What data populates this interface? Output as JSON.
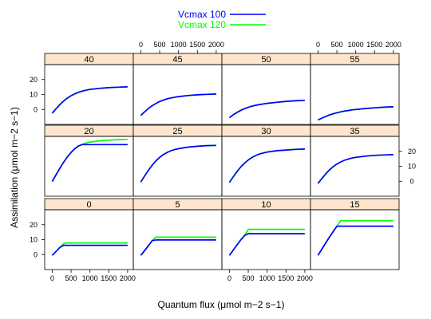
{
  "chart_data": {
    "type": "line",
    "xlabel": "Quantum flux (μmol m−2 s−1)",
    "ylabel": "Assimilation (μmol m−2 s−1)",
    "xlim": [
      -200,
      2150
    ],
    "ylim": [
      -10,
      30
    ],
    "x_ticks": [
      "0",
      "500",
      "1000",
      "1500",
      "2000"
    ],
    "y_ticks": [
      "0",
      "10",
      "20"
    ],
    "legend": {
      "placement": "top",
      "entries": [
        {
          "name": "Vcmax 100",
          "color": "#0000ff"
        },
        {
          "name": "Vcmax 120",
          "color": "#00ff00"
        }
      ]
    },
    "x": [
      0,
      100,
      200,
      300,
      400,
      500,
      600,
      700,
      800,
      900,
      1000,
      1250,
      1500,
      1750,
      2000
    ],
    "panels": [
      {
        "label": "0",
        "series": [
          {
            "name": "Vcmax 100",
            "values": [
              -0.5,
              2.1,
              4.7,
              6.2,
              6.2,
              6.2,
              6.2,
              6.2,
              6.2,
              6.2,
              6.2,
              6.2,
              6.2,
              6.2,
              6.2
            ]
          },
          {
            "name": "Vcmax 120",
            "values": [
              -0.5,
              2.1,
              4.7,
              7.3,
              7.8,
              7.8,
              7.8,
              7.8,
              7.8,
              7.8,
              7.8,
              7.8,
              7.8,
              7.8,
              7.8
            ]
          }
        ]
      },
      {
        "label": "5",
        "series": [
          {
            "name": "Vcmax 100",
            "values": [
              -0.5,
              2.7,
              5.9,
              9.3,
              9.8,
              9.8,
              9.8,
              9.8,
              9.8,
              9.8,
              9.8,
              9.8,
              9.8,
              9.8,
              9.8
            ]
          },
          {
            "name": "Vcmax 120",
            "values": [
              -0.5,
              2.7,
              5.9,
              9.3,
              11.7,
              11.7,
              11.7,
              11.7,
              11.7,
              11.7,
              11.7,
              11.7,
              11.7,
              11.7,
              11.7
            ]
          }
        ]
      },
      {
        "label": "10",
        "series": [
          {
            "name": "Vcmax 100",
            "values": [
              -0.5,
              3.0,
              6.4,
              9.8,
              12.7,
              14.0,
              14.0,
              14.0,
              14.0,
              14.0,
              14.0,
              14.0,
              14.0,
              14.0,
              14.0
            ]
          },
          {
            "name": "Vcmax 120",
            "values": [
              -0.5,
              3.0,
              6.4,
              9.8,
              12.7,
              16.9,
              16.9,
              16.9,
              16.9,
              16.9,
              16.9,
              16.9,
              16.9,
              16.9,
              16.9
            ]
          }
        ]
      },
      {
        "label": "15",
        "series": [
          {
            "name": "Vcmax 100",
            "values": [
              -0.5,
              3.6,
              7.6,
              11.6,
              15.3,
              19.0,
              19.0,
              19.0,
              19.0,
              19.0,
              19.0,
              19.0,
              19.0,
              19.0,
              19.0
            ]
          },
          {
            "name": "Vcmax 120",
            "values": [
              -0.5,
              3.6,
              7.6,
              11.6,
              15.3,
              19.0,
              22.7,
              22.7,
              22.7,
              22.7,
              22.7,
              22.7,
              22.7,
              22.7,
              22.7
            ]
          }
        ]
      },
      {
        "label": "20",
        "series": [
          {
            "name": "Vcmax 100",
            "values": [
              -0.2,
              4.3,
              8.6,
              12.6,
              16.2,
              19.3,
              21.8,
              23.6,
              24.5,
              24.5,
              24.5,
              24.5,
              24.5,
              24.5,
              24.5
            ]
          },
          {
            "name": "Vcmax 120",
            "values": [
              -0.2,
              4.3,
              8.6,
              12.6,
              16.2,
              19.3,
              21.8,
              23.6,
              24.8,
              25.6,
              26.2,
              27.0,
              27.5,
              27.8,
              28.0
            ]
          }
        ]
      },
      {
        "label": "25",
        "series": [
          {
            "name": "Vcmax 100",
            "values": [
              -0.5,
              3.5,
              7.3,
              10.7,
              13.6,
              16.0,
              17.9,
              19.3,
              20.4,
              21.2,
              21.8,
              22.8,
              23.4,
              23.8,
              24.0
            ]
          },
          {
            "name": "Vcmax 120",
            "values": [
              -0.5,
              3.5,
              7.3,
              10.7,
              13.6,
              16.0,
              17.9,
              19.3,
              20.4,
              21.2,
              21.8,
              22.8,
              23.4,
              23.8,
              24.0
            ]
          }
        ]
      },
      {
        "label": "30",
        "series": [
          {
            "name": "Vcmax 100",
            "values": [
              -0.8,
              2.9,
              6.4,
              9.5,
              12.1,
              14.2,
              15.9,
              17.2,
              18.2,
              18.9,
              19.5,
              20.4,
              20.9,
              21.3,
              21.5
            ]
          },
          {
            "name": "Vcmax 120",
            "values": [
              -0.8,
              2.9,
              6.4,
              9.5,
              12.1,
              14.2,
              15.9,
              17.2,
              18.2,
              18.9,
              19.5,
              20.4,
              20.9,
              21.3,
              21.5
            ]
          }
        ]
      },
      {
        "label": "35",
        "series": [
          {
            "name": "Vcmax 100",
            "values": [
              -1.5,
              1.8,
              4.8,
              7.5,
              9.7,
              11.5,
              12.9,
              14.0,
              14.8,
              15.5,
              16.0,
              16.8,
              17.3,
              17.6,
              17.8
            ]
          },
          {
            "name": "Vcmax 120",
            "values": [
              -1.5,
              1.8,
              4.8,
              7.5,
              9.7,
              11.5,
              12.9,
              14.0,
              14.8,
              15.5,
              16.0,
              16.8,
              17.3,
              17.6,
              17.8
            ]
          }
        ]
      },
      {
        "label": "40",
        "series": [
          {
            "name": "Vcmax 100",
            "values": [
              -2.5,
              0.5,
              3.2,
              5.6,
              7.6,
              9.2,
              10.5,
              11.5,
              12.3,
              12.9,
              13.4,
              14.1,
              14.6,
              14.9,
              15.1
            ]
          },
          {
            "name": "Vcmax 120",
            "values": [
              -2.5,
              0.5,
              3.2,
              5.6,
              7.6,
              9.2,
              10.5,
              11.5,
              12.3,
              12.9,
              13.4,
              14.1,
              14.6,
              14.9,
              15.1
            ]
          }
        ]
      },
      {
        "label": "45",
        "series": [
          {
            "name": "Vcmax 100",
            "values": [
              -4.0,
              -1.6,
              0.6,
              2.5,
              4.0,
              5.3,
              6.3,
              7.1,
              7.7,
              8.2,
              8.6,
              9.3,
              9.8,
              10.1,
              10.3
            ]
          },
          {
            "name": "Vcmax 120",
            "values": [
              -4.0,
              -1.6,
              0.6,
              2.5,
              4.0,
              5.3,
              6.3,
              7.1,
              7.7,
              8.2,
              8.6,
              9.3,
              9.8,
              10.1,
              10.3
            ]
          }
        ]
      },
      {
        "label": "50",
        "series": [
          {
            "name": "Vcmax 100",
            "values": [
              -5.5,
              -3.6,
              -2.0,
              -0.6,
              0.5,
              1.4,
              2.2,
              2.8,
              3.3,
              3.7,
              4.1,
              4.8,
              5.4,
              5.8,
              6.1
            ]
          },
          {
            "name": "Vcmax 120",
            "values": [
              -5.5,
              -3.6,
              -2.0,
              -0.6,
              0.5,
              1.4,
              2.2,
              2.8,
              3.3,
              3.7,
              4.1,
              4.8,
              5.4,
              5.8,
              6.1
            ]
          }
        ]
      },
      {
        "label": "55",
        "series": [
          {
            "name": "Vcmax 100",
            "values": [
              -7.0,
              -5.8,
              -4.7,
              -3.7,
              -2.9,
              -2.2,
              -1.6,
              -1.1,
              -0.7,
              -0.3,
              0.0,
              0.6,
              1.1,
              1.5,
              1.8
            ]
          },
          {
            "name": "Vcmax 120",
            "values": [
              -7.0,
              -5.8,
              -4.7,
              -3.7,
              -2.9,
              -2.2,
              -1.6,
              -1.1,
              -0.7,
              -0.3,
              0.0,
              0.6,
              1.1,
              1.5,
              1.8
            ]
          }
        ]
      }
    ]
  }
}
